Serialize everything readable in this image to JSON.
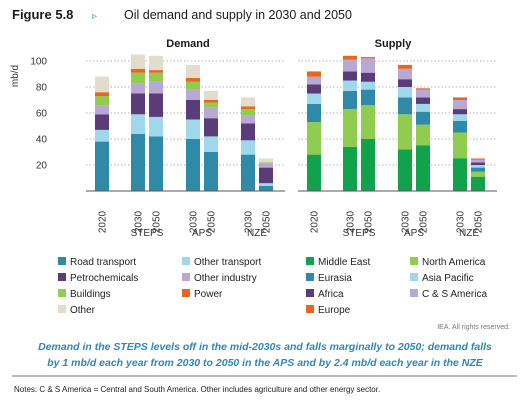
{
  "header": {
    "figure_label": "Figure 5.8",
    "title": "Oil demand and supply in 2030 and 2050"
  },
  "credit": "IEA. All rights reserved.",
  "caption_lines": [
    "Demand in the STEPS levels off in the mid-2030s and falls marginally to 2050; demand falls",
    "by 1 mb/d each year from 2030 to 2050 in the APS and by 2.4 mb/d each year in the NZE"
  ],
  "notes": "Notes: C & S America = Central and South America. Other includes agriculture and other energy sector.",
  "chart_data": [
    {
      "type": "bar",
      "stacked": true,
      "title": "Demand",
      "ylabel": "mb/d",
      "ylim": [
        0,
        100
      ],
      "yticks": [
        20,
        40,
        60,
        80,
        100
      ],
      "grid": true,
      "categories": [
        "2020",
        "2030",
        "2050",
        "2030",
        "2050",
        "2030",
        "2050"
      ],
      "groups": [
        {
          "label": "",
          "span": [
            0,
            0
          ]
        },
        {
          "label": "STEPS",
          "span": [
            1,
            2
          ]
        },
        {
          "label": "APS",
          "span": [
            3,
            4
          ]
        },
        {
          "label": "NZE",
          "span": [
            5,
            6
          ]
        }
      ],
      "series": [
        {
          "name": "Road transport",
          "color": "#2e8aa6",
          "values": [
            38,
            44,
            42,
            40,
            30,
            28,
            4
          ]
        },
        {
          "name": "Other transport",
          "color": "#9fd7ec",
          "values": [
            9,
            15,
            15,
            15,
            12,
            11,
            2
          ]
        },
        {
          "name": "Petrochemicals",
          "color": "#5a3c78",
          "values": [
            12,
            16,
            18,
            15,
            14,
            13,
            12
          ]
        },
        {
          "name": "Other industry",
          "color": "#b9a8d6",
          "values": [
            7,
            8,
            9,
            8,
            8,
            6,
            3
          ]
        },
        {
          "name": "Buildings",
          "color": "#8fcc50",
          "values": [
            7,
            8,
            7,
            6,
            4,
            5,
            1
          ]
        },
        {
          "name": "Power",
          "color": "#e8661e",
          "values": [
            3,
            3,
            2,
            3,
            2,
            2,
            0
          ]
        },
        {
          "name": "Other",
          "color": "#e1dccb",
          "values": [
            12,
            11,
            11,
            10,
            7,
            7,
            3
          ]
        }
      ]
    },
    {
      "type": "bar",
      "stacked": true,
      "title": "Supply",
      "ylim": [
        0,
        100
      ],
      "yticks": [
        20,
        40,
        60,
        80,
        100
      ],
      "grid": true,
      "categories": [
        "2020",
        "2030",
        "2050",
        "2030",
        "2050",
        "2030",
        "2050"
      ],
      "groups": [
        {
          "label": "",
          "span": [
            0,
            0
          ]
        },
        {
          "label": "STEPS",
          "span": [
            1,
            2
          ]
        },
        {
          "label": "APS",
          "span": [
            3,
            4
          ]
        },
        {
          "label": "NZE",
          "span": [
            5,
            6
          ]
        }
      ],
      "series": [
        {
          "name": "Middle East",
          "color": "#12a24b",
          "values": [
            28,
            34,
            40,
            32,
            35,
            25,
            11
          ]
        },
        {
          "name": "North America",
          "color": "#8fcc50",
          "values": [
            25,
            29,
            26,
            27,
            16,
            20,
            4
          ]
        },
        {
          "name": "Eurasia",
          "color": "#2e8aa6",
          "values": [
            14,
            14,
            12,
            13,
            10,
            9,
            3
          ]
        },
        {
          "name": "Asia Pacific",
          "color": "#9fd7ec",
          "values": [
            8,
            8,
            6,
            8,
            6,
            5,
            2
          ]
        },
        {
          "name": "Africa",
          "color": "#5a3c78",
          "values": [
            7,
            7,
            7,
            6,
            5,
            4,
            2
          ]
        },
        {
          "name": "C & S America",
          "color": "#b9a8d6",
          "values": [
            6,
            9,
            11,
            8,
            6,
            7,
            2
          ]
        },
        {
          "name": "Europe",
          "color": "#e8661e",
          "values": [
            4,
            3,
            1,
            3,
            1,
            2,
            1
          ]
        }
      ]
    }
  ]
}
